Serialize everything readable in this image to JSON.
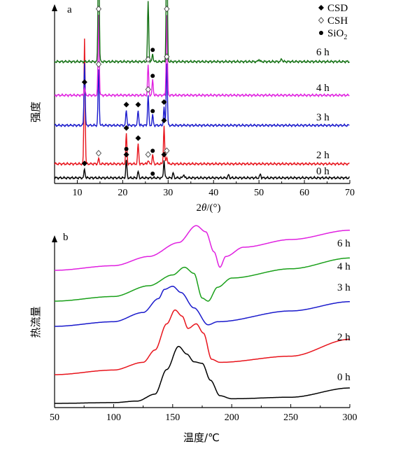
{
  "chart_data": [
    {
      "panel": "a",
      "type": "line",
      "xlabel": "2θ/(°)",
      "xlabel_parts": {
        "main": "2",
        "theta": "θ",
        "rest": "/(°)"
      },
      "ylabel": "强度",
      "xlim": [
        5,
        70
      ],
      "xticks": [
        "10",
        "20",
        "30",
        "40",
        "50",
        "60",
        "70"
      ],
      "legend": [
        {
          "label": "CSD",
          "marker": "filled-diamond"
        },
        {
          "label": "CSH",
          "marker": "open-diamond"
        },
        {
          "label": "SiO",
          "sub": "2",
          "marker": "filled-circle"
        }
      ],
      "series": [
        {
          "name": "0 h",
          "color": "#000000",
          "peaks": [
            [
              11.6,
              0.35
            ],
            [
              20.8,
              0.7
            ],
            [
              23.4,
              0.25
            ],
            [
              29.1,
              0.7
            ],
            [
              31.1,
              0.2
            ],
            [
              33.4,
              0.15
            ],
            [
              43.3,
              0.12
            ],
            [
              50.3,
              0.15
            ]
          ],
          "markers": [
            {
              "x": 11.6,
              "type": "filled-diamond"
            },
            {
              "x": 20.8,
              "type": "filled-diamond"
            },
            {
              "x": 20.8,
              "type": "filled-circle"
            },
            {
              "x": 29.1,
              "type": "filled-diamond"
            },
            {
              "x": 26.6,
              "type": "filled-circle"
            }
          ]
        },
        {
          "name": "2 h",
          "color": "#e8141c",
          "peaks": [
            [
              11.6,
              5.0
            ],
            [
              14.7,
              0.2
            ],
            [
              20.8,
              1.2
            ],
            [
              23.4,
              0.8
            ],
            [
              25.6,
              0.15
            ],
            [
              26.6,
              0.35
            ],
            [
              29.1,
              1.5
            ],
            [
              29.7,
              0.3
            ]
          ],
          "markers": [
            {
              "x": 20.8,
              "type": "filled-diamond"
            },
            {
              "x": 23.4,
              "type": "filled-diamond"
            },
            {
              "x": 29.1,
              "type": "filled-diamond"
            },
            {
              "x": 14.7,
              "type": "open-diamond"
            },
            {
              "x": 25.6,
              "type": "open-diamond"
            },
            {
              "x": 29.7,
              "type": "open-diamond"
            },
            {
              "x": 26.6,
              "type": "filled-circle"
            }
          ]
        },
        {
          "name": "3 h",
          "color": "#1a1acc",
          "peaks": [
            [
              11.6,
              2.5
            ],
            [
              14.7,
              2.2
            ],
            [
              20.8,
              0.6
            ],
            [
              23.4,
              0.6
            ],
            [
              25.6,
              1.2
            ],
            [
              26.6,
              0.4
            ],
            [
              29.1,
              0.7
            ],
            [
              29.7,
              2.5
            ]
          ],
          "markers": [
            {
              "x": 20.8,
              "type": "filled-diamond"
            },
            {
              "x": 23.4,
              "type": "filled-diamond"
            },
            {
              "x": 29.1,
              "type": "filled-diamond"
            },
            {
              "x": 14.7,
              "type": "open-diamond"
            },
            {
              "x": 25.6,
              "type": "open-diamond"
            },
            {
              "x": 29.7,
              "type": "open-diamond"
            },
            {
              "x": 26.6,
              "type": "filled-circle"
            }
          ]
        },
        {
          "name": "4 h",
          "color": "#e020e0",
          "peaks": [
            [
              11.6,
              0.3
            ],
            [
              14.7,
              3.2
            ],
            [
              25.6,
              1.2
            ],
            [
              26.6,
              0.6
            ],
            [
              29.7,
              3.2
            ]
          ],
          "markers": [
            {
              "x": 11.6,
              "type": "filled-diamond"
            },
            {
              "x": 14.7,
              "type": "open-diamond"
            },
            {
              "x": 25.6,
              "type": "open-diamond"
            },
            {
              "x": 29.7,
              "type": "open-diamond"
            },
            {
              "x": 26.6,
              "type": "filled-circle"
            }
          ]
        },
        {
          "name": "6 h",
          "color": "#127012",
          "peaks": [
            [
              14.7,
              5.2
            ],
            [
              25.6,
              2.4
            ],
            [
              26.6,
              0.3
            ],
            [
              29.7,
              5.5
            ],
            [
              50.0,
              0.1
            ],
            [
              55.0,
              0.12
            ]
          ],
          "markers": [
            {
              "x": 14.7,
              "type": "open-diamond"
            },
            {
              "x": 25.6,
              "type": "open-diamond"
            },
            {
              "x": 29.7,
              "type": "open-diamond"
            },
            {
              "x": 26.6,
              "type": "filled-circle"
            }
          ]
        }
      ]
    },
    {
      "panel": "b",
      "type": "line",
      "xlabel": "温度/℃",
      "ylabel": "热流量",
      "xlim": [
        50,
        300
      ],
      "xticks": [
        "50",
        "100",
        "150",
        "200",
        "250",
        "300"
      ],
      "series": [
        {
          "name": "0 h",
          "color": "#000000",
          "points": [
            [
              50,
              0
            ],
            [
              100,
              0.05
            ],
            [
              120,
              0.15
            ],
            [
              135,
              0.6
            ],
            [
              145,
              2.2
            ],
            [
              155,
              3.7
            ],
            [
              162,
              3.2
            ],
            [
              168,
              2.7
            ],
            [
              175,
              2.6
            ],
            [
              182,
              1.5
            ],
            [
              190,
              0.5
            ],
            [
              200,
              0.3
            ],
            [
              250,
              0.4
            ],
            [
              300,
              1.0
            ]
          ]
        },
        {
          "name": "2 h",
          "color": "#e8141c",
          "points": [
            [
              50,
              0
            ],
            [
              100,
              0.3
            ],
            [
              125,
              0.8
            ],
            [
              135,
              1.6
            ],
            [
              145,
              3.3
            ],
            [
              152,
              4.2
            ],
            [
              158,
              3.8
            ],
            [
              163,
              3.0
            ],
            [
              170,
              3.3
            ],
            [
              176,
              2.7
            ],
            [
              183,
              1.0
            ],
            [
              190,
              0.8
            ],
            [
              250,
              1.2
            ],
            [
              300,
              2.3
            ]
          ]
        },
        {
          "name": "3 h",
          "color": "#1a1acc",
          "points": [
            [
              50,
              0
            ],
            [
              100,
              0.3
            ],
            [
              125,
              0.9
            ],
            [
              138,
              1.8
            ],
            [
              143,
              2.4
            ],
            [
              150,
              2.6
            ],
            [
              157,
              2.2
            ],
            [
              168,
              1.2
            ],
            [
              180,
              0.1
            ],
            [
              188,
              0.3
            ],
            [
              250,
              1.0
            ],
            [
              300,
              1.6
            ]
          ]
        },
        {
          "name": "4 h",
          "color": "#1aa01a",
          "points": [
            [
              50,
              0
            ],
            [
              100,
              0.3
            ],
            [
              130,
              1.0
            ],
            [
              150,
              1.7
            ],
            [
              160,
              2.2
            ],
            [
              168,
              1.8
            ],
            [
              175,
              0.2
            ],
            [
              180,
              0.0
            ],
            [
              188,
              0.9
            ],
            [
              200,
              1.5
            ],
            [
              250,
              2.1
            ],
            [
              300,
              2.8
            ]
          ]
        },
        {
          "name": "6 h",
          "color": "#e020e0",
          "points": [
            [
              50,
              0
            ],
            [
              100,
              0.3
            ],
            [
              130,
              0.9
            ],
            [
              155,
              1.8
            ],
            [
              170,
              2.9
            ],
            [
              178,
              2.5
            ],
            [
              185,
              1.2
            ],
            [
              190,
              0.2
            ],
            [
              195,
              0.9
            ],
            [
              210,
              1.5
            ],
            [
              250,
              2.0
            ],
            [
              300,
              2.6
            ]
          ]
        }
      ]
    }
  ]
}
